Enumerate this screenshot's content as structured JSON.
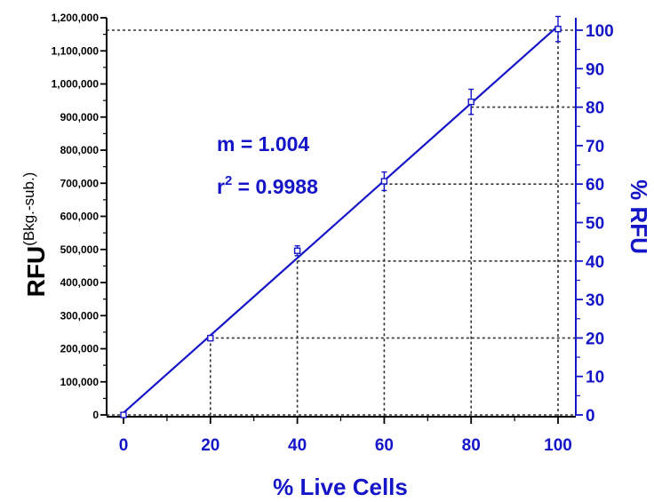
{
  "chart_data": {
    "type": "scatter",
    "x": [
      0,
      20,
      40,
      60,
      80,
      100
    ],
    "series": [
      {
        "rfu": [
          0,
          232000,
          496000,
          706000,
          946000,
          1166000
        ],
        "rfu_error": [
          3000,
          8000,
          15000,
          28000,
          38000,
          38000
        ],
        "fit": "linear"
      }
    ],
    "xlabel": "% Live Cells",
    "ylabel_left": "RFU",
    "ylabel_left_suffix": "(Bkg.-sub.)",
    "ylabel_right": "% RFU",
    "xlim": [
      0,
      100
    ],
    "ylim_left": [
      0,
      1200000
    ],
    "ylim_right": [
      0,
      100
    ],
    "x_ticks": [
      "0",
      "20",
      "40",
      "60",
      "80",
      "100"
    ],
    "y_left_ticks": [
      "0",
      "100,000",
      "200,000",
      "300,000",
      "400,000",
      "500,000",
      "600,000",
      "700,000",
      "800,000",
      "900,000",
      "1,000,000",
      "1,100,000",
      "1,200,000"
    ],
    "y_right_ticks": [
      "0",
      "10",
      "20",
      "30",
      "40",
      "50",
      "60",
      "70",
      "80",
      "90",
      "100"
    ],
    "reference_lines": [
      {
        "x": 20,
        "percent_rfu": 20
      },
      {
        "x": 40,
        "percent_rfu": 40
      },
      {
        "x": 60,
        "percent_rfu": 60
      },
      {
        "x": 80,
        "percent_rfu": 80
      },
      {
        "x": 100,
        "percent_rfu": 100
      }
    ],
    "annotations": {
      "slope": "m = 1.004",
      "r2_prefix": "r",
      "r2_sup": "2",
      "r2_value": " = 0.9988"
    },
    "colors": {
      "series": "#1515c8",
      "axis_left": "#000000",
      "reference_line": "#333333"
    },
    "grid": false
  }
}
